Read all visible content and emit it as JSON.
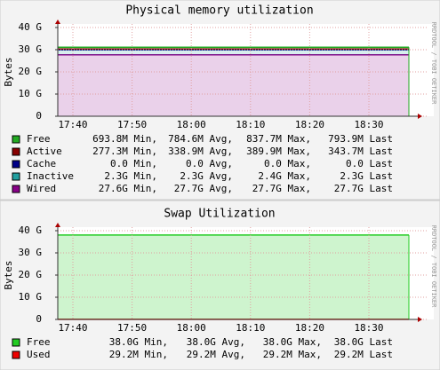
{
  "chart_data": [
    {
      "type": "stacked-area",
      "title": "Physical memory utilization",
      "y_label": "Bytes",
      "watermark": "RRDTOOL / TOBI OETIKER",
      "ylim": [
        0,
        40
      ],
      "yticks": [
        {
          "value": 0,
          "label": "0"
        },
        {
          "value": 10,
          "label": "10 G"
        },
        {
          "value": 20,
          "label": "20 G"
        },
        {
          "value": 30,
          "label": "30 G"
        },
        {
          "value": 40,
          "label": "40 G"
        }
      ],
      "xticks": [
        "17:40",
        "17:50",
        "18:00",
        "18:10",
        "18:20",
        "18:30"
      ],
      "grid": true,
      "series": [
        {
          "name": "Free",
          "color": "#22aa22",
          "values": [
            0.78,
            0.78,
            0.78,
            0.78,
            0.78,
            0.78
          ],
          "legend_stats": [
            "693.8M Min,",
            "784.6M Avg,",
            "837.7M Max,",
            "793.9M Last"
          ]
        },
        {
          "name": "Active",
          "color": "#880000",
          "values": [
            0.34,
            0.34,
            0.34,
            0.34,
            0.34,
            0.34
          ],
          "legend_stats": [
            "277.3M Min,",
            "338.9M Avg,",
            "389.9M Max,",
            "343.7M Last"
          ]
        },
        {
          "name": "Cache",
          "color": "#000088",
          "values": [
            0,
            0,
            0,
            0,
            0,
            0
          ],
          "legend_stats": [
            "0.0  Min,",
            "0.0  Avg,",
            "0.0  Max,",
            "0.0  Last"
          ]
        },
        {
          "name": "Inactive",
          "color": "#22a0a0",
          "values": [
            2.3,
            2.3,
            2.3,
            2.3,
            2.3,
            2.3
          ],
          "legend_stats": [
            "2.3G Min,",
            "2.3G Avg,",
            "2.4G Max,",
            "2.3G Last"
          ]
        },
        {
          "name": "Wired",
          "color": "#880088",
          "values": [
            27.7,
            27.7,
            27.7,
            27.7,
            27.7,
            27.7
          ],
          "legend_stats": [
            "27.6G Min,",
            "27.7G Avg,",
            "27.7G Max,",
            "27.7G Last"
          ]
        }
      ]
    },
    {
      "type": "stacked-area",
      "title": "Swap Utilization",
      "y_label": "Bytes",
      "watermark": "RRDTOOL / TOBI OETIKER",
      "ylim": [
        0,
        40
      ],
      "yticks": [
        {
          "value": 0,
          "label": "0"
        },
        {
          "value": 10,
          "label": "10 G"
        },
        {
          "value": 20,
          "label": "20 G"
        },
        {
          "value": 30,
          "label": "30 G"
        },
        {
          "value": 40,
          "label": "40 G"
        }
      ],
      "xticks": [
        "17:40",
        "17:50",
        "18:00",
        "18:10",
        "18:20",
        "18:30"
      ],
      "grid": true,
      "series": [
        {
          "name": "Free",
          "color": "#22cc22",
          "values": [
            38.0,
            38.0,
            38.0,
            38.0,
            38.0,
            38.0
          ],
          "legend_stats": [
            "38.0G Min,",
            "38.0G Avg,",
            "38.0G Max,",
            "38.0G Last"
          ]
        },
        {
          "name": "Used",
          "color": "#ee0000",
          "values": [
            0.0292,
            0.0292,
            0.0292,
            0.0292,
            0.0292,
            0.0292
          ],
          "legend_stats": [
            "29.2M Min,",
            "29.2M Avg,",
            "29.2M Max,",
            "29.2M Last"
          ]
        }
      ]
    }
  ]
}
